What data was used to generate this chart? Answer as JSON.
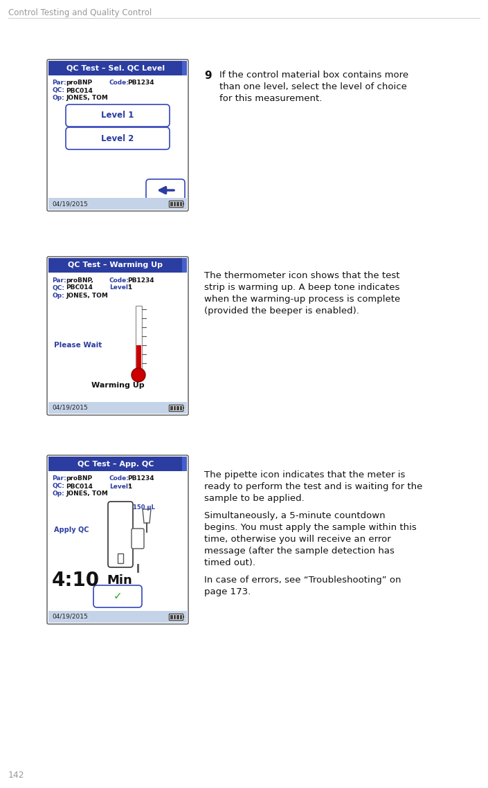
{
  "page_header": "Control Testing and Quality Control",
  "page_number": "142",
  "header_color": "#999999",
  "bg_color": "#ffffff",
  "screen_bg": "#ffffff",
  "title_bg": "#2b3da0",
  "title_color": "#ffffff",
  "footer_bg": "#c5d3e8",
  "footer_text_color": "#222222",
  "label_color": "#2b3da0",
  "value_color": "#111111",
  "button_border": "#3344bb",
  "button_text": "#2b3da0",
  "green_check": "#22aa22",
  "screen1_title": "QC Test – Sel. QC Level",
  "screen2_title": "QC Test – Warming Up",
  "screen3_title": "QC Test – App. QC",
  "screen1": {
    "par_value": "proBNP",
    "code_value": "PB1234",
    "qc_value": "PBC014",
    "op_value": "JONES, TOM",
    "buttons": [
      "Level 1",
      "Level 2"
    ],
    "date": "04/19/2015"
  },
  "screen2": {
    "par_value": "proBNP,",
    "code_value": "PB1234",
    "qc_value": "PBC014",
    "level_value": "1",
    "op_value": "JONES, TOM",
    "status1": "Please Wait",
    "status2": "Warming Up",
    "date": "04/19/2015"
  },
  "screen3": {
    "par_value": "proBNP",
    "code_value": "PB1234",
    "qc_value": "PBC014",
    "level_value": "1",
    "op_value": "JONES, TOM",
    "apply_label": "Apply QC",
    "volume_label": "150 µL",
    "countdown": "4:10",
    "min_label": "Min",
    "date": "04/19/2015"
  },
  "step9_number": "9",
  "step9_text": "If the control material box contains more\nthan one level, select the level of choice\nfor this measurement.",
  "text2": "The thermometer icon shows that the test\nstrip is warming up. A beep tone indicates\nwhen the warming-up process is complete\n(provided the beeper is enabled).",
  "text3a": "The pipette icon indicates that the meter is\nready to perform the test and is waiting for the\nsample to be applied.",
  "text3b": "Simultaneously, a 5-minute countdown\nbegins. You must apply the sample within this\ntime, otherwise you will receive an error\nmessage (after the sample detection has\ntimed out).",
  "text3c": "In case of errors, see “Troubleshooting” on\npage 173."
}
